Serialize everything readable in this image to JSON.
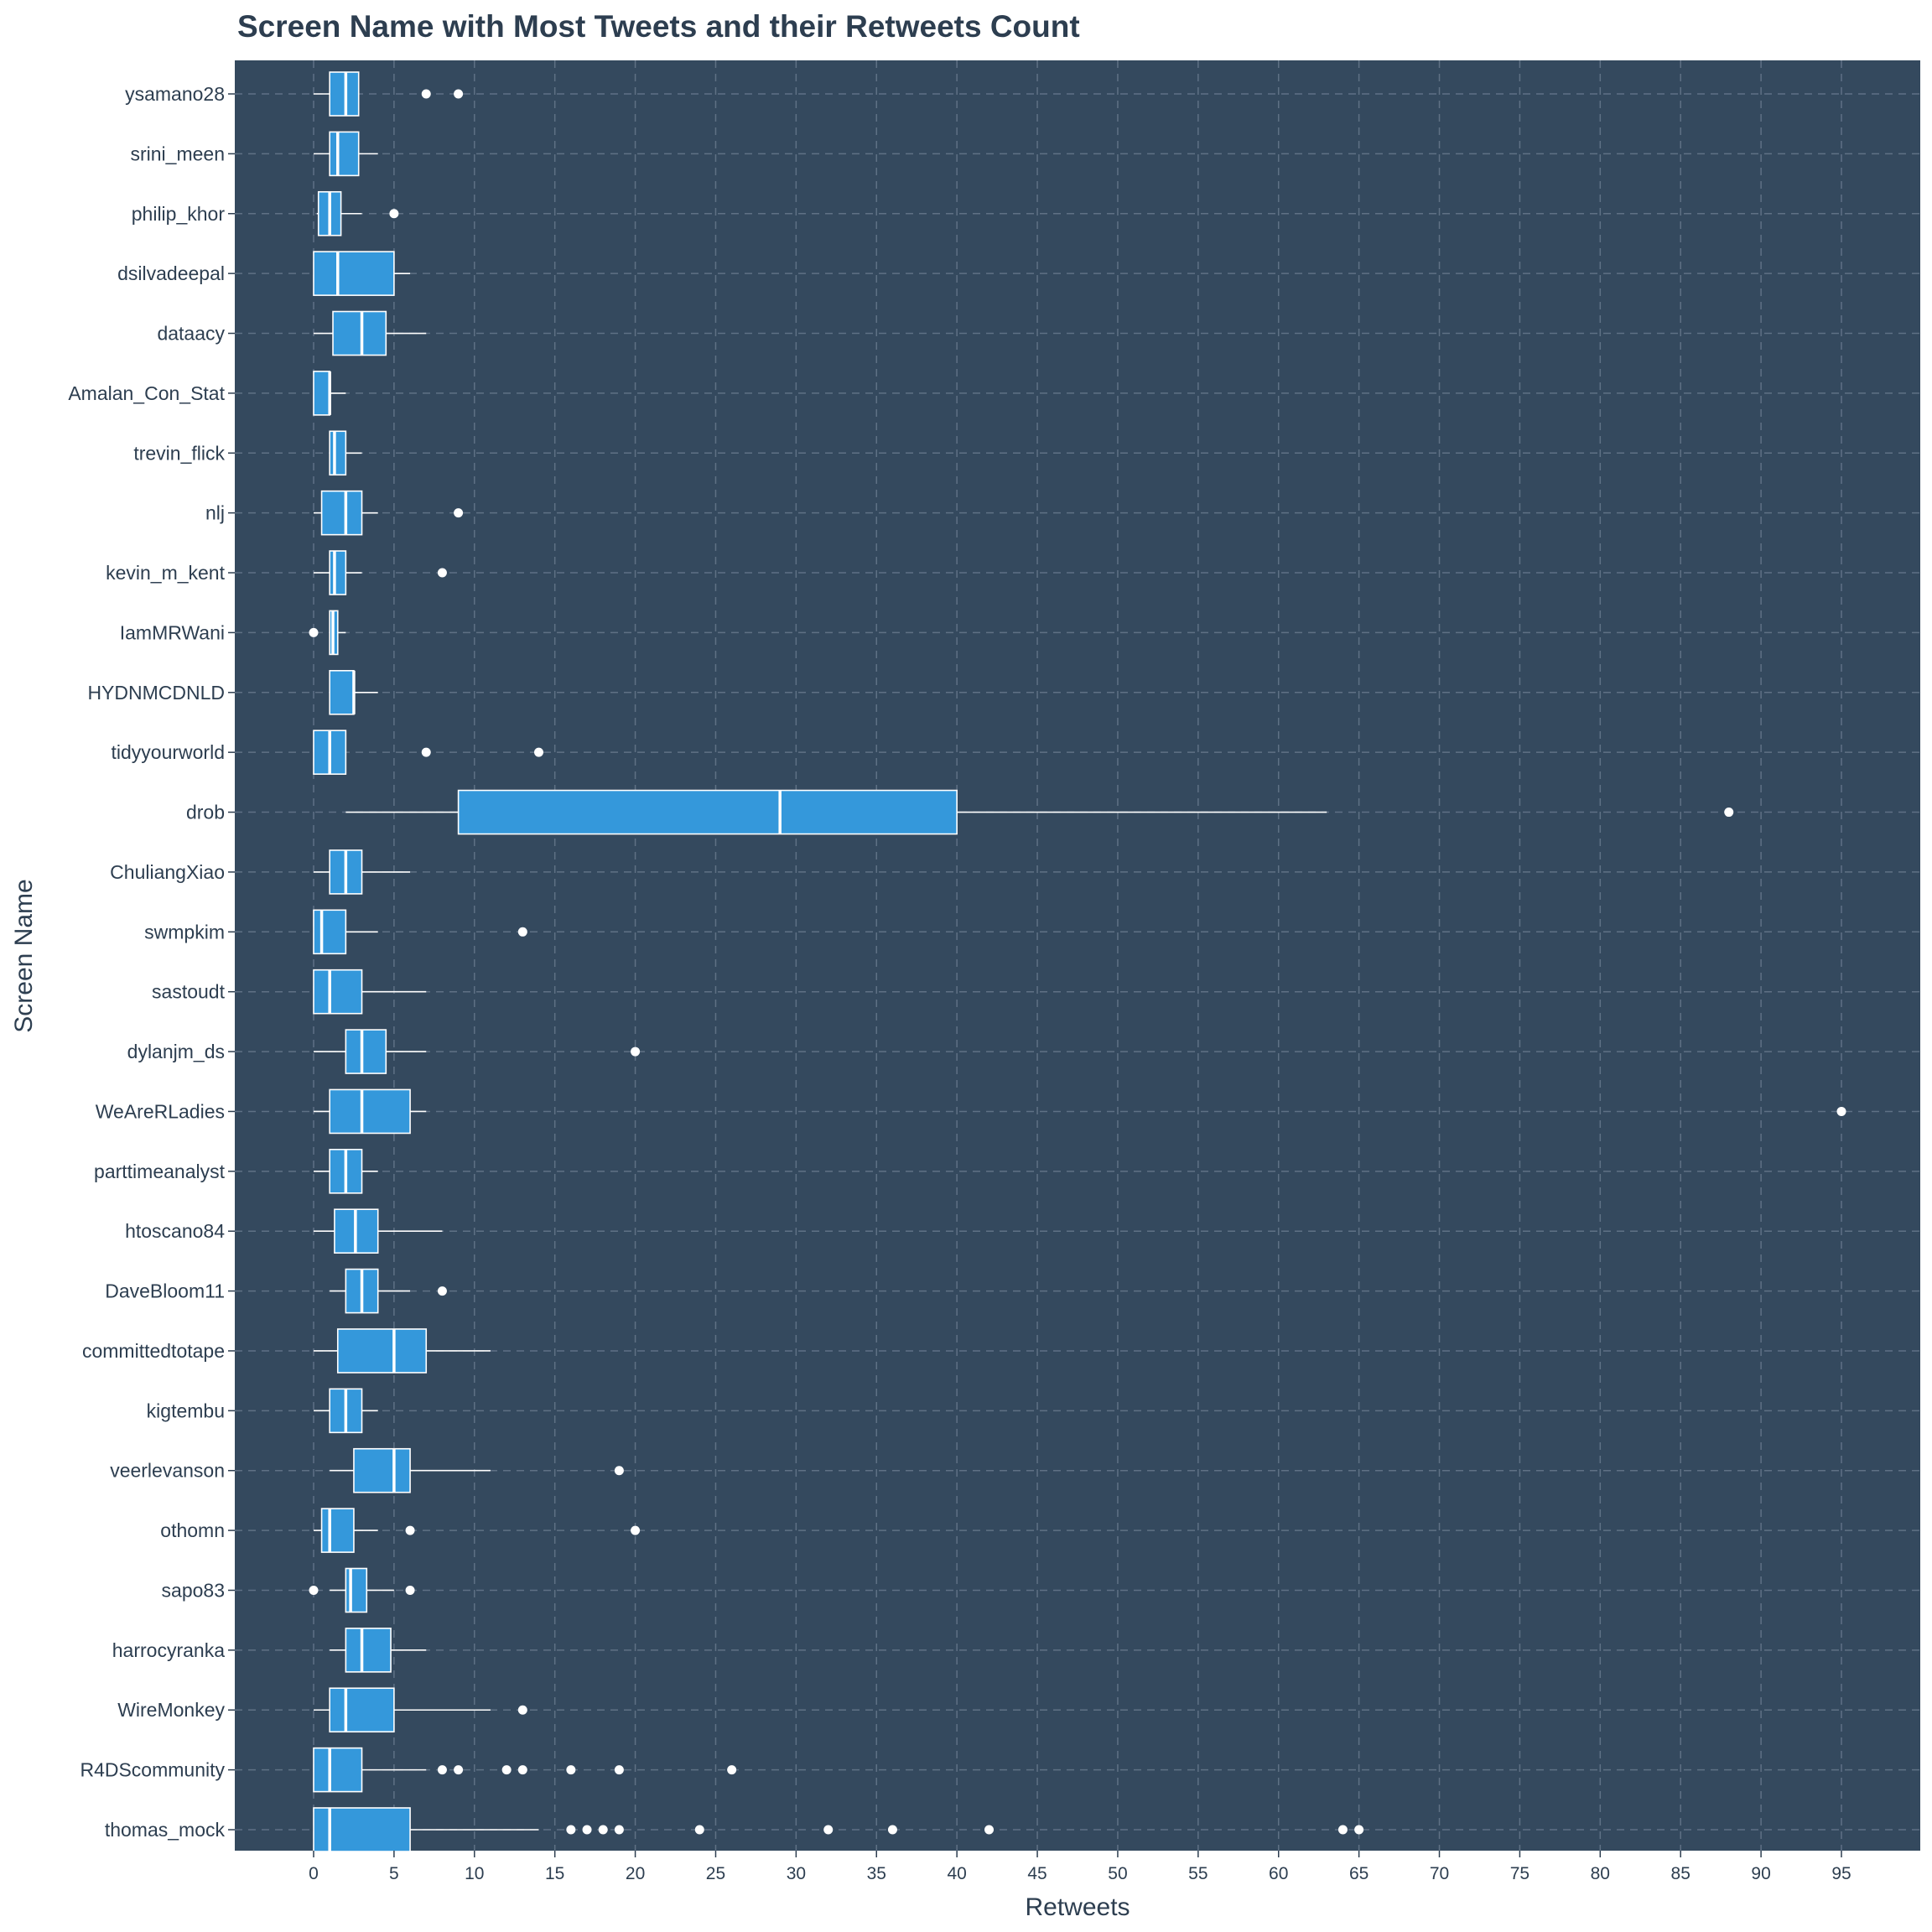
{
  "chart_data": {
    "type": "boxplot",
    "orientation": "horizontal",
    "title": "Screen Name with Most Tweets and their Retweets Count",
    "xlabel": "Retweets",
    "ylabel": "Screen Name",
    "xlim": [
      -5,
      99
    ],
    "xticks": [
      0,
      5,
      10,
      15,
      20,
      25,
      30,
      35,
      40,
      45,
      50,
      55,
      60,
      65,
      70,
      75,
      80,
      85,
      90,
      95
    ],
    "grid": true,
    "colors": {
      "panel": "#34495e",
      "box": "#3498db",
      "outline": "#ffffff",
      "text": "#2d3e50",
      "grid": "#5f7185"
    },
    "series": [
      {
        "name": "ysamano28",
        "min": 0,
        "q1": 1,
        "median": 2,
        "q3": 2.8,
        "max": 2.8,
        "outliers": [
          7,
          9
        ]
      },
      {
        "name": "srini_meen",
        "min": 0,
        "q1": 1,
        "median": 1.5,
        "q3": 2.8,
        "max": 4,
        "outliers": []
      },
      {
        "name": "philip_khor",
        "min": 0.2,
        "q1": 0.3,
        "median": 1,
        "q3": 1.7,
        "max": 3,
        "outliers": [
          5
        ]
      },
      {
        "name": "dsilvadeepal",
        "min": 0,
        "q1": 0,
        "median": 1.5,
        "q3": 5,
        "max": 6,
        "outliers": []
      },
      {
        "name": "dataacy",
        "min": 0,
        "q1": 1.2,
        "median": 3,
        "q3": 4.5,
        "max": 7,
        "outliers": []
      },
      {
        "name": "Amalan_Con_Stat",
        "min": 0,
        "q1": 0,
        "median": 1,
        "q3": 1,
        "max": 2,
        "outliers": []
      },
      {
        "name": "trevin_flick",
        "min": 1,
        "q1": 1,
        "median": 1.3,
        "q3": 2,
        "max": 3,
        "outliers": []
      },
      {
        "name": "nlj",
        "min": 0,
        "q1": 0.5,
        "median": 2,
        "q3": 3,
        "max": 4,
        "outliers": [
          9
        ]
      },
      {
        "name": "kevin_m_kent",
        "min": 0,
        "q1": 1,
        "median": 1.3,
        "q3": 2,
        "max": 3,
        "outliers": [
          8
        ]
      },
      {
        "name": "IamMRWani",
        "min": 1,
        "q1": 1,
        "median": 1.2,
        "q3": 1.5,
        "max": 2,
        "outliers": [
          0
        ]
      },
      {
        "name": "HYDNMCDNLD",
        "min": 1,
        "q1": 1,
        "median": 2.5,
        "q3": 2.5,
        "max": 4,
        "outliers": []
      },
      {
        "name": "tidyyourworld",
        "min": 0,
        "q1": 0,
        "median": 1,
        "q3": 2,
        "max": 2,
        "outliers": [
          7,
          14
        ]
      },
      {
        "name": "drob",
        "min": 2,
        "q1": 9,
        "median": 29,
        "q3": 40,
        "max": 63,
        "outliers": [
          88
        ]
      },
      {
        "name": "ChuliangXiao",
        "min": 0,
        "q1": 1,
        "median": 2,
        "q3": 3,
        "max": 6,
        "outliers": []
      },
      {
        "name": "swmpkim",
        "min": 0,
        "q1": 0,
        "median": 0.5,
        "q3": 2,
        "max": 4,
        "outliers": [
          13
        ]
      },
      {
        "name": "sastoudt",
        "min": 0,
        "q1": 0,
        "median": 1,
        "q3": 3,
        "max": 7,
        "outliers": []
      },
      {
        "name": "dylanjm_ds",
        "min": 0,
        "q1": 2,
        "median": 3,
        "q3": 4.5,
        "max": 7,
        "outliers": [
          20
        ]
      },
      {
        "name": "WeAreRLadies",
        "min": 0,
        "q1": 1,
        "median": 3,
        "q3": 6,
        "max": 7,
        "outliers": [
          95
        ]
      },
      {
        "name": "parttimeanalyst",
        "min": 0,
        "q1": 1,
        "median": 2,
        "q3": 3,
        "max": 4,
        "outliers": []
      },
      {
        "name": "htoscano84",
        "min": 0,
        "q1": 1.3,
        "median": 2.6,
        "q3": 4,
        "max": 8,
        "outliers": []
      },
      {
        "name": "DaveBloom11",
        "min": 1,
        "q1": 2,
        "median": 3,
        "q3": 4,
        "max": 6,
        "outliers": [
          8
        ]
      },
      {
        "name": "committedtotape",
        "min": 0,
        "q1": 1.5,
        "median": 5,
        "q3": 7,
        "max": 11,
        "outliers": []
      },
      {
        "name": "kigtembu",
        "min": 0,
        "q1": 1,
        "median": 2,
        "q3": 3,
        "max": 4,
        "outliers": []
      },
      {
        "name": "veerlevanson",
        "min": 1,
        "q1": 2.5,
        "median": 5,
        "q3": 6,
        "max": 11,
        "outliers": [
          19
        ]
      },
      {
        "name": "othomn",
        "min": 0,
        "q1": 0.5,
        "median": 1,
        "q3": 2.5,
        "max": 4,
        "outliers": [
          6,
          20
        ]
      },
      {
        "name": "sapo83",
        "min": 1,
        "q1": 2,
        "median": 2.3,
        "q3": 3.3,
        "max": 5,
        "outliers": [
          0,
          6
        ]
      },
      {
        "name": "harrocyranka",
        "min": 1,
        "q1": 2,
        "median": 3,
        "q3": 4.8,
        "max": 7,
        "outliers": []
      },
      {
        "name": "WireMonkey",
        "min": 0,
        "q1": 1,
        "median": 2,
        "q3": 5,
        "max": 11,
        "outliers": [
          13
        ]
      },
      {
        "name": "R4DScommunity",
        "min": 0,
        "q1": 0,
        "median": 1,
        "q3": 3,
        "max": 7,
        "outliers": [
          8,
          9,
          12,
          13,
          16,
          19,
          26
        ]
      },
      {
        "name": "thomas_mock",
        "min": 0,
        "q1": 0,
        "median": 1,
        "q3": 6,
        "max": 14,
        "outliers": [
          16,
          17,
          18,
          19,
          24,
          32,
          36,
          42,
          64,
          65
        ]
      }
    ]
  }
}
